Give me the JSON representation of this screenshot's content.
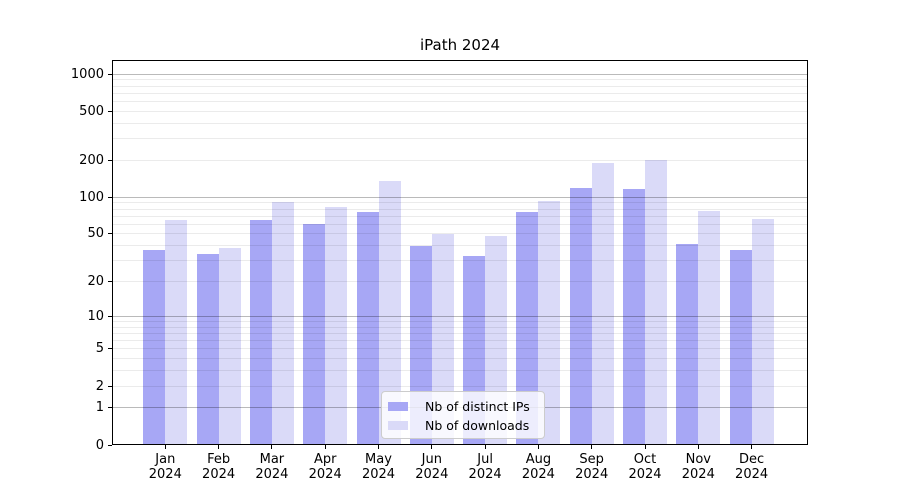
{
  "chart_data": {
    "type": "bar",
    "title": "iPath 2024",
    "y_scale": "log1p",
    "ylim": [
      0,
      1300
    ],
    "grid": true,
    "legend_position": "bottom-center",
    "year": "2024",
    "categories": [
      "Jan",
      "Feb",
      "Mar",
      "Apr",
      "May",
      "Jun",
      "Jul",
      "Aug",
      "Sep",
      "Oct",
      "Nov",
      "Dec"
    ],
    "series": [
      {
        "name": "Nb of distinct IPs",
        "color": "#a7a7f5",
        "values": [
          37,
          34,
          65,
          60,
          76,
          40,
          33,
          76,
          120,
          116,
          41,
          37
        ]
      },
      {
        "name": "Nb of downloads",
        "color": "#dadaf8",
        "values": [
          65,
          38,
          92,
          83,
          135,
          50,
          48,
          93,
          190,
          200,
          77,
          66
        ]
      }
    ],
    "y_ticks": [
      0,
      1,
      2,
      5,
      10,
      20,
      50,
      100,
      200,
      500,
      1000
    ],
    "grid_major": [
      1,
      10,
      100,
      1000
    ],
    "grid_minor": [
      2,
      3,
      4,
      5,
      6,
      7,
      8,
      9,
      20,
      30,
      40,
      50,
      60,
      70,
      80,
      90,
      200,
      300,
      400,
      500,
      600,
      700,
      800,
      900
    ]
  }
}
